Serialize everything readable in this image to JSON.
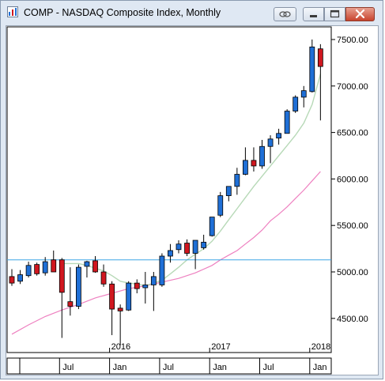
{
  "window": {
    "title": "COMP - NASDAQ Composite Index, Monthly",
    "buttons": [
      "link-icon",
      "minimize-icon",
      "maximize-icon",
      "close-icon"
    ]
  },
  "colors": {
    "up": "#1f6fd6",
    "down": "#d0171f",
    "ma_short": "#b7d9b7",
    "ma_long": "#ee80c0",
    "hline": "#3fa6e6",
    "grid": "#000000"
  },
  "chart_data": {
    "type": "candlestick",
    "title": "COMP - NASDAQ Composite Index, Monthly",
    "y_ticks": [
      "4500.00",
      "5000.00",
      "5500.00",
      "6000.00",
      "6500.00",
      "7000.00",
      "7500.00"
    ],
    "y_range": [
      4300,
      7550
    ],
    "x_year_labels": [
      {
        "label": "2016",
        "index": 12
      },
      {
        "label": "2017",
        "index": 24
      },
      {
        "label": "2018",
        "index": 36
      }
    ],
    "x_month_labels": [
      {
        "label": "Jul",
        "index": 6
      },
      {
        "label": "Jan",
        "index": 12
      },
      {
        "label": "Jul",
        "index": 18
      },
      {
        "label": "Jan",
        "index": 24
      },
      {
        "label": "Jul",
        "index": 30
      },
      {
        "label": "Jan",
        "index": 36
      }
    ],
    "horizontal_line": 5130,
    "candles": [
      {
        "o": 4950,
        "h": 5030,
        "l": 4850,
        "c": 4880
      },
      {
        "o": 4900,
        "h": 5020,
        "l": 4870,
        "c": 4970
      },
      {
        "o": 4960,
        "h": 5110,
        "l": 4940,
        "c": 5070
      },
      {
        "o": 5080,
        "h": 5100,
        "l": 4960,
        "c": 4980
      },
      {
        "o": 4990,
        "h": 5160,
        "l": 4960,
        "c": 5110
      },
      {
        "o": 5130,
        "h": 5230,
        "l": 5010,
        "c": 5000
      },
      {
        "o": 5130,
        "h": 5150,
        "l": 4290,
        "c": 4780
      },
      {
        "o": 4680,
        "h": 5050,
        "l": 4530,
        "c": 4630
      },
      {
        "o": 4630,
        "h": 5080,
        "l": 4600,
        "c": 5050
      },
      {
        "o": 5060,
        "h": 5120,
        "l": 4940,
        "c": 5110
      },
      {
        "o": 5120,
        "h": 5170,
        "l": 4990,
        "c": 5000
      },
      {
        "o": 5000,
        "h": 5080,
        "l": 4840,
        "c": 4870
      },
      {
        "o": 4870,
        "h": 4900,
        "l": 4320,
        "c": 4600
      },
      {
        "o": 4610,
        "h": 4650,
        "l": 4210,
        "c": 4580
      },
      {
        "o": 4590,
        "h": 4900,
        "l": 4580,
        "c": 4880
      },
      {
        "o": 4880,
        "h": 4920,
        "l": 4770,
        "c": 4820
      },
      {
        "o": 4830,
        "h": 5000,
        "l": 4660,
        "c": 4860
      },
      {
        "o": 4860,
        "h": 5000,
        "l": 4580,
        "c": 4950
      },
      {
        "o": 4860,
        "h": 5200,
        "l": 4840,
        "c": 5170
      },
      {
        "o": 5170,
        "h": 5300,
        "l": 5100,
        "c": 5230
      },
      {
        "o": 5240,
        "h": 5340,
        "l": 5200,
        "c": 5300
      },
      {
        "o": 5310,
        "h": 5350,
        "l": 5170,
        "c": 5200
      },
      {
        "o": 5200,
        "h": 5340,
        "l": 5030,
        "c": 5340
      },
      {
        "o": 5260,
        "h": 5400,
        "l": 5240,
        "c": 5320
      },
      {
        "o": 5390,
        "h": 5580,
        "l": 5380,
        "c": 5590
      },
      {
        "o": 5610,
        "h": 5860,
        "l": 5590,
        "c": 5820
      },
      {
        "o": 5820,
        "h": 5920,
        "l": 5760,
        "c": 5920
      },
      {
        "o": 5920,
        "h": 6120,
        "l": 5830,
        "c": 6050
      },
      {
        "o": 6050,
        "h": 6340,
        "l": 6040,
        "c": 6200
      },
      {
        "o": 6200,
        "h": 6340,
        "l": 6080,
        "c": 6140
      },
      {
        "o": 6140,
        "h": 6420,
        "l": 6110,
        "c": 6350
      },
      {
        "o": 6350,
        "h": 6470,
        "l": 6170,
        "c": 6430
      },
      {
        "o": 6440,
        "h": 6540,
        "l": 6370,
        "c": 6490
      },
      {
        "o": 6490,
        "h": 6750,
        "l": 6490,
        "c": 6730
      },
      {
        "o": 6730,
        "h": 6900,
        "l": 6710,
        "c": 6880
      },
      {
        "o": 6880,
        "h": 7000,
        "l": 6770,
        "c": 6950
      },
      {
        "o": 6940,
        "h": 7500,
        "l": 6930,
        "c": 7420
      },
      {
        "o": 7400,
        "h": 7450,
        "l": 6630,
        "c": 7210
      }
    ],
    "ma_short": [
      [
        6,
        5090
      ],
      [
        8,
        5090
      ],
      [
        9,
        5070
      ],
      [
        10,
        5040
      ],
      [
        11,
        5010
      ],
      [
        12,
        4960
      ],
      [
        13,
        4900
      ],
      [
        14,
        4880
      ],
      [
        15,
        4870
      ],
      [
        16,
        4850
      ],
      [
        17,
        4880
      ],
      [
        18,
        4910
      ],
      [
        19,
        4980
      ],
      [
        20,
        5050
      ],
      [
        21,
        5130
      ],
      [
        22,
        5190
      ],
      [
        23,
        5250
      ],
      [
        24,
        5330
      ],
      [
        25,
        5440
      ],
      [
        26,
        5560
      ],
      [
        27,
        5680
      ],
      [
        28,
        5800
      ],
      [
        29,
        5920
      ],
      [
        30,
        6030
      ],
      [
        31,
        6140
      ],
      [
        32,
        6250
      ],
      [
        33,
        6360
      ],
      [
        34,
        6470
      ],
      [
        35,
        6600
      ],
      [
        36,
        6800
      ],
      [
        37,
        7130
      ]
    ],
    "ma_long": [
      [
        0,
        4330
      ],
      [
        2,
        4430
      ],
      [
        4,
        4520
      ],
      [
        6,
        4590
      ],
      [
        8,
        4650
      ],
      [
        10,
        4720
      ],
      [
        12,
        4770
      ],
      [
        14,
        4820
      ],
      [
        16,
        4850
      ],
      [
        18,
        4890
      ],
      [
        20,
        4930
      ],
      [
        22,
        4990
      ],
      [
        24,
        5070
      ],
      [
        25,
        5130
      ],
      [
        26,
        5180
      ],
      [
        27,
        5230
      ],
      [
        28,
        5300
      ],
      [
        29,
        5370
      ],
      [
        30,
        5450
      ],
      [
        31,
        5550
      ],
      [
        32,
        5620
      ],
      [
        33,
        5700
      ],
      [
        34,
        5790
      ],
      [
        35,
        5880
      ],
      [
        36,
        5980
      ],
      [
        37,
        6080
      ]
    ]
  }
}
